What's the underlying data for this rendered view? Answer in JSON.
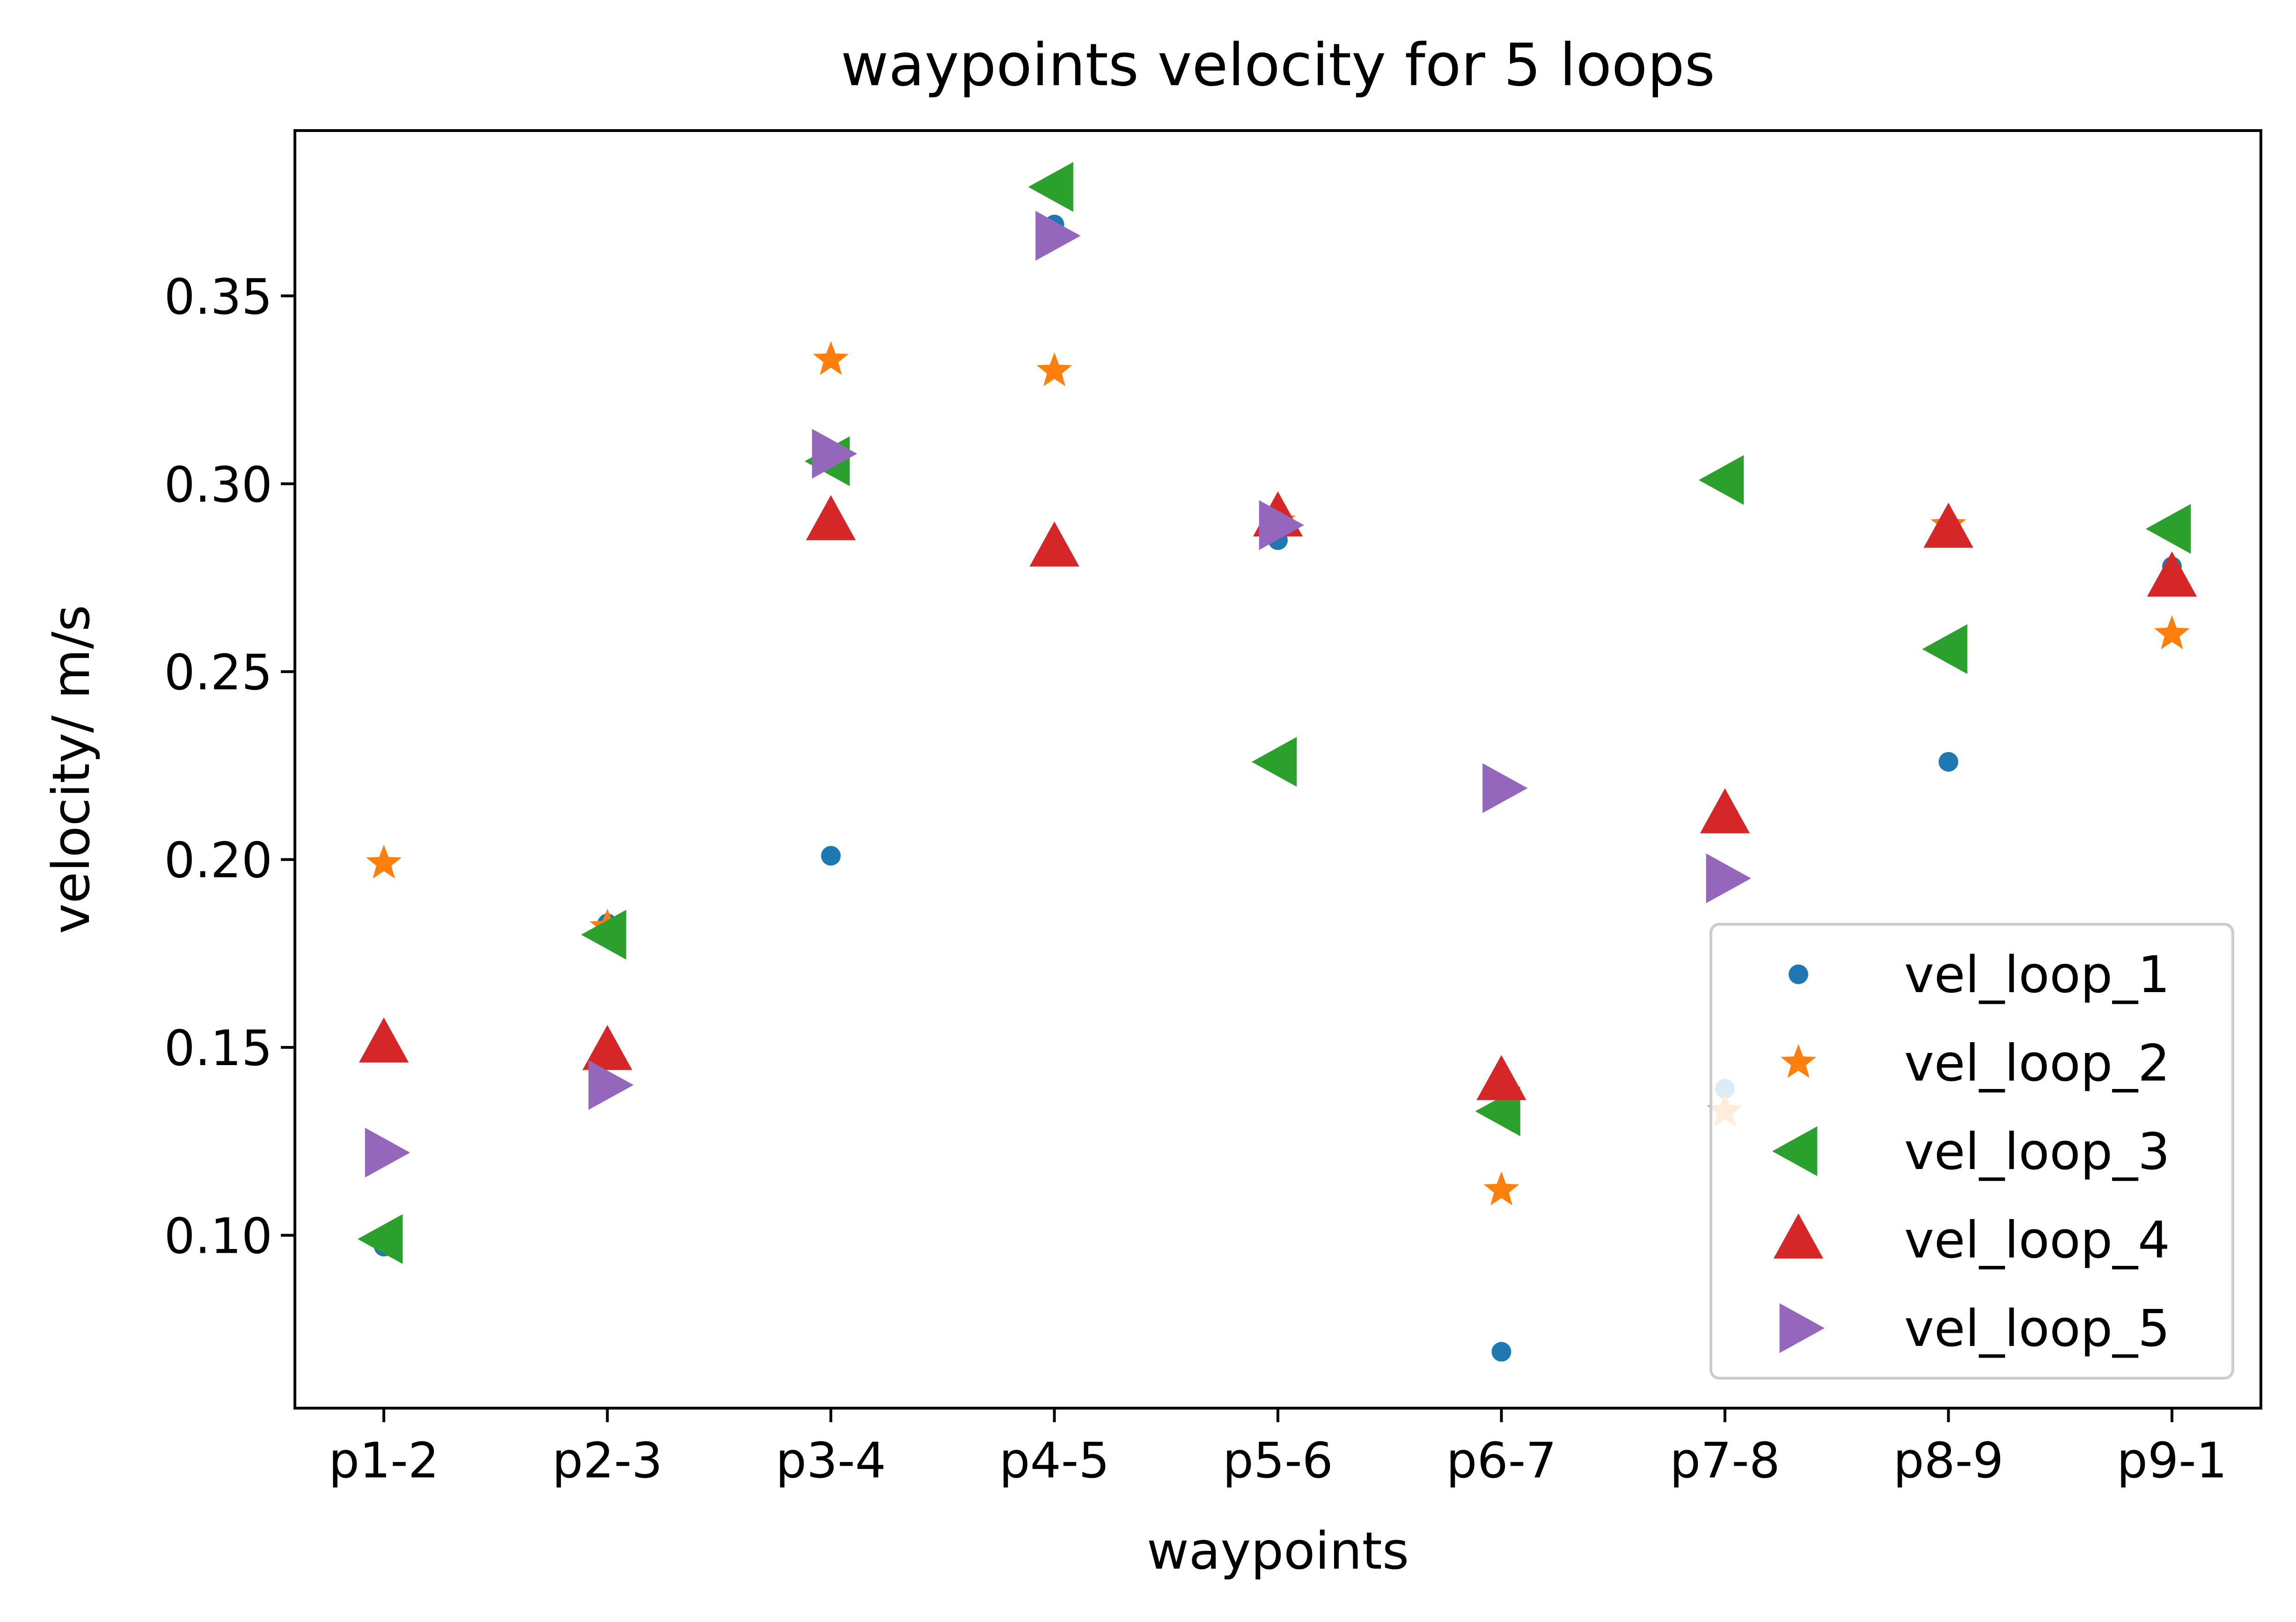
{
  "chart_data": {
    "type": "scatter",
    "title": "waypoints velocity for 5 loops",
    "xlabel": "waypoints",
    "ylabel": "velocity/ m/s",
    "categories": [
      "p1-2",
      "p2-3",
      "p3-4",
      "p4-5",
      "p5-6",
      "p6-7",
      "p7-8",
      "p8-9",
      "p9-1"
    ],
    "ylim": [
      0.054,
      0.394
    ],
    "yticks": [
      "0.10",
      "0.15",
      "0.20",
      "0.25",
      "0.30",
      "0.35"
    ],
    "grid": false,
    "legend_position": "lower right",
    "series": [
      {
        "name": "vel_loop_1",
        "marker": "circle",
        "color": "#1f77b4",
        "values": [
          0.097,
          0.183,
          0.201,
          0.369,
          0.285,
          0.069,
          0.139,
          0.226,
          0.278
        ]
      },
      {
        "name": "vel_loop_2",
        "marker": "star",
        "color": "#ff7f0e",
        "values": [
          0.199,
          0.182,
          0.333,
          0.33,
          0.29,
          0.112,
          0.133,
          0.289,
          0.26
        ]
      },
      {
        "name": "vel_loop_3",
        "marker": "triangle-left",
        "color": "#2ca02c",
        "values": [
          0.099,
          0.18,
          0.306,
          0.379,
          0.226,
          0.133,
          0.301,
          0.256,
          0.288
        ]
      },
      {
        "name": "vel_loop_4",
        "marker": "triangle-up",
        "color": "#d62728",
        "values": [
          0.151,
          0.149,
          0.29,
          0.283,
          0.291,
          0.141,
          0.212,
          0.288,
          0.275
        ]
      },
      {
        "name": "vel_loop_5",
        "marker": "triangle-right",
        "color": "#9467bd",
        "values": [
          0.122,
          0.14,
          0.308,
          0.366,
          0.289,
          0.219,
          0.195,
          null,
          null
        ]
      }
    ]
  }
}
